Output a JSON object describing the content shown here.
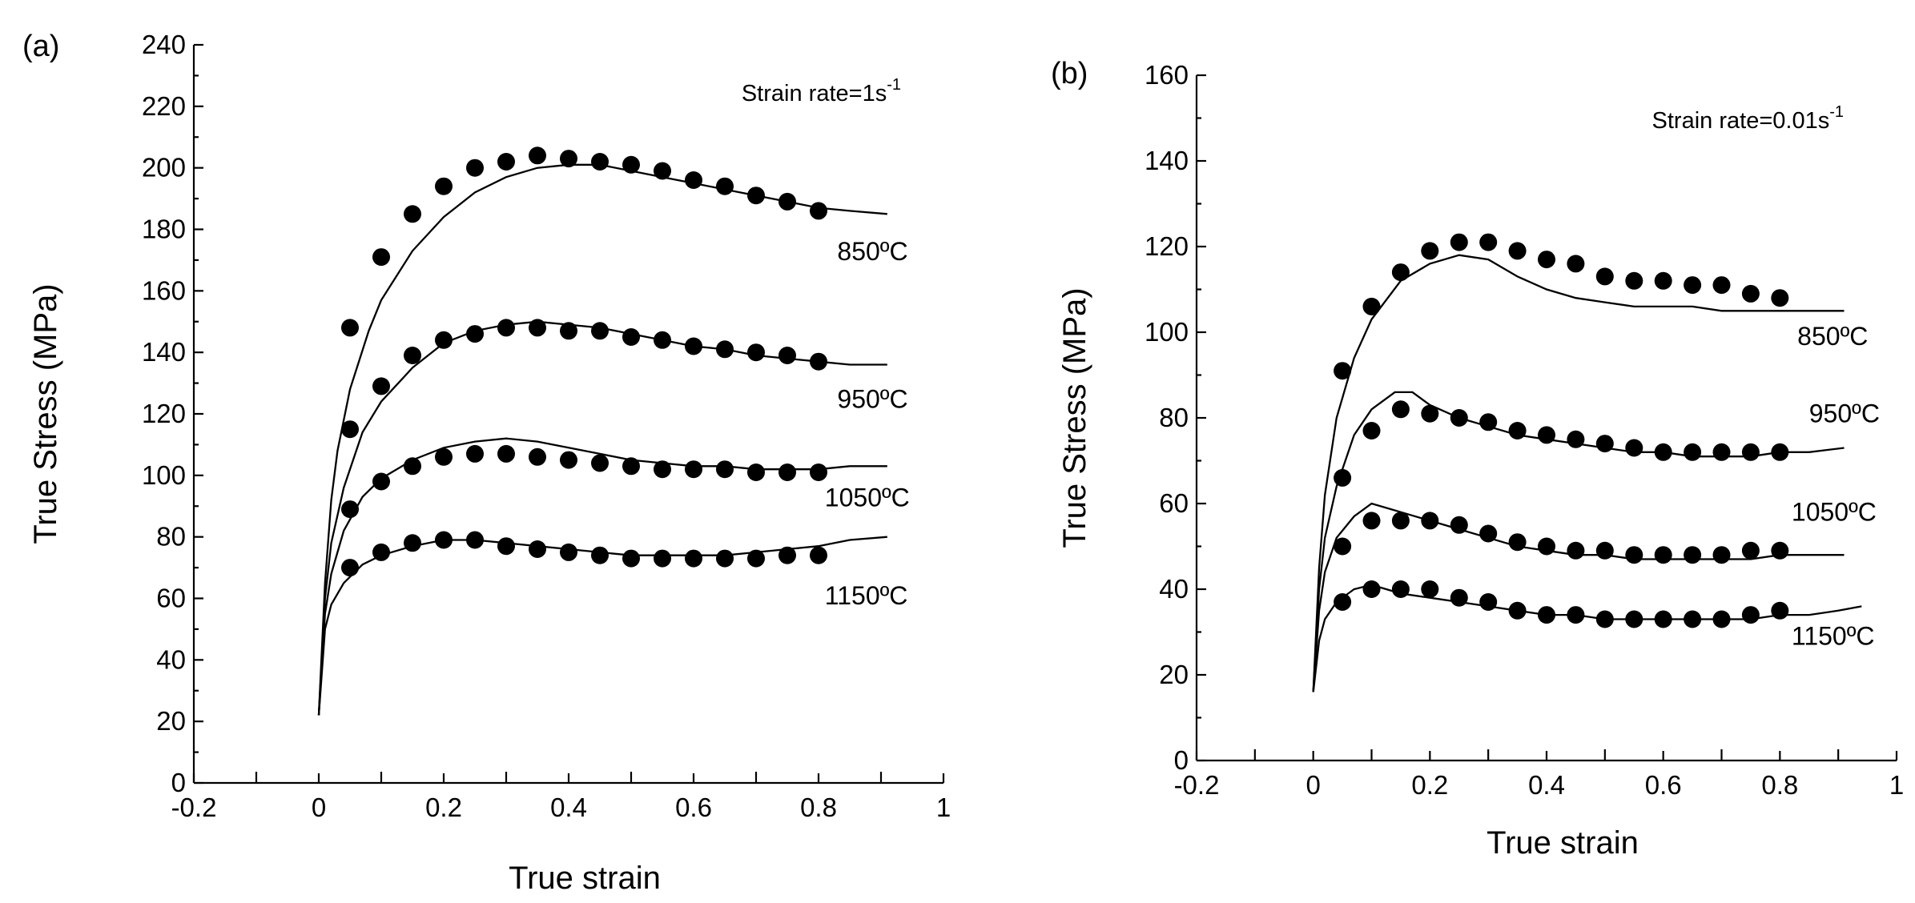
{
  "chart_data": [
    {
      "type": "line",
      "panel_label": "(a)",
      "annotation": "Strain rate=1s",
      "annotation_sup": "-1",
      "xlabel": "True strain",
      "ylabel": "True Stress (MPa)",
      "xlim": [
        -0.2,
        1.0
      ],
      "ylim": [
        0,
        240
      ],
      "x_ticks": [
        -0.2,
        0,
        0.2,
        0.4,
        0.6,
        0.8,
        1.0
      ],
      "x_tick_labels": [
        "-0.2",
        "0",
        "0.2",
        "0.4",
        "0.6",
        "0.8",
        "1"
      ],
      "y_ticks": [
        0,
        20,
        40,
        60,
        80,
        100,
        120,
        140,
        160,
        180,
        200,
        220,
        240
      ],
      "y_tick_labels": [
        "0",
        "20",
        "40",
        "60",
        "80",
        "100",
        "120",
        "140",
        "160",
        "180",
        "200",
        "220",
        "240"
      ],
      "series": [
        {
          "name": "850ºC",
          "label": "850ºC",
          "label_at": [
            0.83,
            170
          ],
          "experimental": {
            "x": [
              0,
              0.01,
              0.02,
              0.03,
              0.05,
              0.08,
              0.1,
              0.15,
              0.2,
              0.25,
              0.3,
              0.35,
              0.4,
              0.45,
              0.5,
              0.55,
              0.6,
              0.65,
              0.7,
              0.75,
              0.8,
              0.85,
              0.91
            ],
            "y": [
              22,
              65,
              92,
              108,
              128,
              147,
              157,
              173,
              184,
              192,
              197,
              200,
              201,
              201,
              199,
              197,
              195,
              193,
              191,
              189,
              187,
              186,
              185
            ]
          },
          "predicted": {
            "x": [
              0.05,
              0.1,
              0.15,
              0.2,
              0.25,
              0.3,
              0.35,
              0.4,
              0.45,
              0.5,
              0.55,
              0.6,
              0.65,
              0.7,
              0.75,
              0.8
            ],
            "y": [
              148,
              171,
              185,
              194,
              200,
              202,
              204,
              203,
              202,
              201,
              199,
              196,
              194,
              191,
              189,
              186
            ]
          }
        },
        {
          "name": "950ºC",
          "label": "950ºC",
          "label_at": [
            0.83,
            122
          ],
          "experimental": {
            "x": [
              0,
              0.01,
              0.02,
              0.04,
              0.07,
              0.1,
              0.15,
              0.2,
              0.25,
              0.3,
              0.35,
              0.4,
              0.45,
              0.5,
              0.55,
              0.6,
              0.65,
              0.7,
              0.75,
              0.8,
              0.85,
              0.91
            ],
            "y": [
              22,
              60,
              78,
              96,
              114,
              124,
              135,
              143,
              147,
              149,
              150,
              149,
              148,
              146,
              144,
              142,
              141,
              139,
              138,
              137,
              136,
              136
            ]
          },
          "predicted": {
            "x": [
              0.05,
              0.1,
              0.15,
              0.2,
              0.25,
              0.3,
              0.35,
              0.4,
              0.45,
              0.5,
              0.55,
              0.6,
              0.65,
              0.7,
              0.75,
              0.8
            ],
            "y": [
              115,
              129,
              139,
              144,
              146,
              148,
              148,
              147,
              147,
              145,
              144,
              142,
              141,
              140,
              139,
              137
            ]
          }
        },
        {
          "name": "1050ºC",
          "label": "1050ºC",
          "label_at": [
            0.81,
            90
          ],
          "experimental": {
            "x": [
              0,
              0.01,
              0.02,
              0.04,
              0.07,
              0.1,
              0.15,
              0.2,
              0.25,
              0.3,
              0.35,
              0.4,
              0.45,
              0.5,
              0.55,
              0.6,
              0.65,
              0.7,
              0.75,
              0.8,
              0.85,
              0.91
            ],
            "y": [
              22,
              55,
              68,
              82,
              93,
              99,
              105,
              109,
              111,
              112,
              111,
              109,
              107,
              105,
              104,
              103,
              103,
              102,
              102,
              102,
              103,
              103
            ]
          },
          "predicted": {
            "x": [
              0.05,
              0.1,
              0.15,
              0.2,
              0.25,
              0.3,
              0.35,
              0.4,
              0.45,
              0.5,
              0.55,
              0.6,
              0.65,
              0.7,
              0.75,
              0.8
            ],
            "y": [
              89,
              98,
              103,
              106,
              107,
              107,
              106,
              105,
              104,
              103,
              102,
              102,
              102,
              101,
              101,
              101
            ]
          }
        },
        {
          "name": "1150ºC",
          "label": "1150ºC",
          "label_at": [
            0.81,
            58
          ],
          "experimental": {
            "x": [
              0,
              0.01,
              0.02,
              0.04,
              0.07,
              0.1,
              0.15,
              0.2,
              0.25,
              0.3,
              0.35,
              0.4,
              0.45,
              0.5,
              0.55,
              0.6,
              0.65,
              0.7,
              0.75,
              0.8,
              0.85,
              0.91
            ],
            "y": [
              22,
              50,
              58,
              65,
              71,
              74,
              77,
              79,
              79,
              78,
              77,
              76,
              75,
              74,
              74,
              74,
              74,
              75,
              76,
              77,
              79,
              80
            ]
          },
          "predicted": {
            "x": [
              0.05,
              0.1,
              0.15,
              0.2,
              0.25,
              0.3,
              0.35,
              0.4,
              0.45,
              0.5,
              0.55,
              0.6,
              0.65,
              0.7,
              0.75,
              0.8
            ],
            "y": [
              70,
              75,
              78,
              79,
              79,
              77,
              76,
              75,
              74,
              73,
              73,
              73,
              73,
              73,
              74,
              74
            ]
          }
        }
      ]
    },
    {
      "type": "line",
      "panel_label": "(b)",
      "annotation": "Strain rate=0.01s",
      "annotation_sup": "-1",
      "xlabel": "True strain",
      "ylabel": "True Stress (MPa)",
      "xlim": [
        -0.2,
        1.0
      ],
      "ylim": [
        0,
        160
      ],
      "x_ticks": [
        -0.2,
        0,
        0.2,
        0.4,
        0.6,
        0.8,
        1.0
      ],
      "x_tick_labels": [
        "-0.2",
        "0",
        "0.2",
        "0.4",
        "0.6",
        "0.8",
        "1"
      ],
      "y_ticks": [
        0,
        20,
        40,
        60,
        80,
        100,
        120,
        140,
        160
      ],
      "y_tick_labels": [
        "0",
        "20",
        "40",
        "60",
        "80",
        "100",
        "120",
        "140",
        "160"
      ],
      "series": [
        {
          "name": "850ºC",
          "label": "850ºC",
          "label_at": [
            0.83,
            97
          ],
          "experimental": {
            "x": [
              0,
              0.01,
              0.02,
              0.04,
              0.07,
              0.1,
              0.15,
              0.2,
              0.25,
              0.3,
              0.35,
              0.4,
              0.45,
              0.5,
              0.55,
              0.6,
              0.65,
              0.7,
              0.75,
              0.8,
              0.85,
              0.91
            ],
            "y": [
              16,
              45,
              62,
              80,
              94,
              103,
              112,
              116,
              118,
              117,
              113,
              110,
              108,
              107,
              106,
              106,
              106,
              105,
              105,
              105,
              105,
              105
            ]
          },
          "predicted": {
            "x": [
              0.05,
              0.1,
              0.15,
              0.2,
              0.25,
              0.3,
              0.35,
              0.4,
              0.45,
              0.5,
              0.55,
              0.6,
              0.65,
              0.7,
              0.75,
              0.8
            ],
            "y": [
              91,
              106,
              114,
              119,
              121,
              121,
              119,
              117,
              116,
              113,
              112,
              112,
              111,
              111,
              109,
              108
            ]
          }
        },
        {
          "name": "950ºC",
          "label": "950ºC",
          "label_at": [
            0.85,
            79
          ],
          "experimental": {
            "x": [
              0,
              0.01,
              0.02,
              0.04,
              0.07,
              0.1,
              0.14,
              0.17,
              0.2,
              0.25,
              0.3,
              0.35,
              0.4,
              0.45,
              0.5,
              0.55,
              0.6,
              0.65,
              0.7,
              0.75,
              0.8,
              0.85,
              0.91
            ],
            "y": [
              16,
              40,
              52,
              64,
              76,
              82,
              86,
              86,
              83,
              80,
              78,
              76,
              75,
              74,
              73,
              72,
              72,
              71,
              71,
              71,
              72,
              72,
              73
            ]
          },
          "predicted": {
            "x": [
              0.05,
              0.1,
              0.15,
              0.2,
              0.25,
              0.3,
              0.35,
              0.4,
              0.45,
              0.5,
              0.55,
              0.6,
              0.65,
              0.7,
              0.75,
              0.8
            ],
            "y": [
              66,
              77,
              82,
              81,
              80,
              79,
              77,
              76,
              75,
              74,
              73,
              72,
              72,
              72,
              72,
              72
            ]
          }
        },
        {
          "name": "1050ºC",
          "label": "1050ºC",
          "label_at": [
            0.82,
            56
          ],
          "experimental": {
            "x": [
              0,
              0.01,
              0.02,
              0.04,
              0.07,
              0.1,
              0.15,
              0.2,
              0.25,
              0.3,
              0.35,
              0.4,
              0.45,
              0.5,
              0.55,
              0.6,
              0.65,
              0.7,
              0.75,
              0.8,
              0.85,
              0.91
            ],
            "y": [
              16,
              35,
              44,
              52,
              57,
              60,
              58,
              56,
              54,
              52,
              50,
              49,
              48,
              48,
              47,
              47,
              47,
              47,
              47,
              48,
              48,
              48
            ]
          },
          "predicted": {
            "x": [
              0.05,
              0.1,
              0.15,
              0.2,
              0.25,
              0.3,
              0.35,
              0.4,
              0.45,
              0.5,
              0.55,
              0.6,
              0.65,
              0.7,
              0.75,
              0.8
            ],
            "y": [
              50,
              56,
              56,
              56,
              55,
              53,
              51,
              50,
              49,
              49,
              48,
              48,
              48,
              48,
              49,
              49
            ]
          }
        },
        {
          "name": "1150ºC",
          "label": "1150ºC",
          "label_at": [
            0.82,
            27
          ],
          "experimental": {
            "x": [
              0,
              0.01,
              0.02,
              0.04,
              0.07,
              0.1,
              0.15,
              0.2,
              0.25,
              0.3,
              0.35,
              0.4,
              0.45,
              0.5,
              0.55,
              0.6,
              0.65,
              0.7,
              0.75,
              0.8,
              0.85,
              0.9,
              0.94
            ],
            "y": [
              16,
              28,
              33,
              37,
              40,
              41,
              39,
              38,
              37,
              36,
              35,
              34,
              34,
              33,
              33,
              33,
              33,
              33,
              33,
              34,
              34,
              35,
              36
            ]
          },
          "predicted": {
            "x": [
              0.05,
              0.1,
              0.15,
              0.2,
              0.25,
              0.3,
              0.35,
              0.4,
              0.45,
              0.5,
              0.55,
              0.6,
              0.65,
              0.7,
              0.75,
              0.8
            ],
            "y": [
              37,
              40,
              40,
              40,
              38,
              37,
              35,
              34,
              34,
              33,
              33,
              33,
              33,
              33,
              34,
              35
            ]
          }
        }
      ]
    }
  ]
}
